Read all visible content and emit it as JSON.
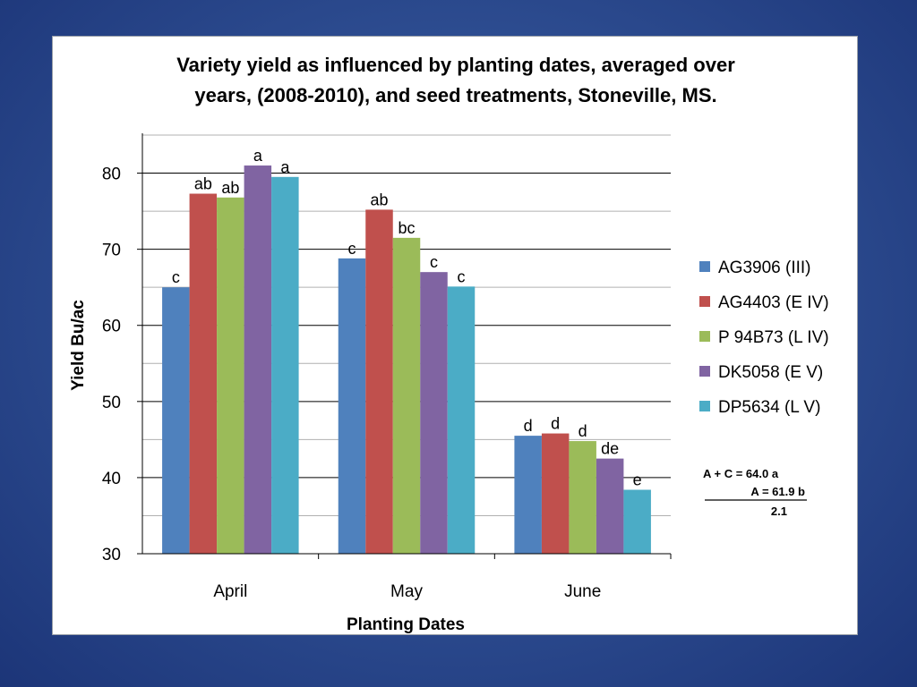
{
  "chart_data": {
    "type": "bar",
    "title_lines": [
      "Variety yield as influenced by planting dates, averaged over",
      "years, (2008-2010), and seed treatments, Stoneville, MS."
    ],
    "xlabel": "Planting Dates",
    "ylabel": "Yield Bu/ac",
    "ylim": [
      30,
      85
    ],
    "yticks": [
      30,
      40,
      50,
      60,
      70,
      80
    ],
    "grid": true,
    "legend_position": "right",
    "categories": [
      "April",
      "May",
      "June"
    ],
    "series": [
      {
        "name": "AG3906 (III)",
        "color": "#4f81bd",
        "values": [
          65.0,
          68.8,
          45.5
        ],
        "letters": [
          "c",
          "c",
          "d"
        ]
      },
      {
        "name": "AG4403 (E IV)",
        "color": "#c0504d",
        "values": [
          77.3,
          75.2,
          45.8
        ],
        "letters": [
          "ab",
          "ab",
          "d"
        ]
      },
      {
        "name": "P 94B73 (L IV)",
        "color": "#9bbb59",
        "values": [
          76.8,
          71.5,
          44.8
        ],
        "letters": [
          "ab",
          "bc",
          "d"
        ]
      },
      {
        "name": "DK5058 (E V)",
        "color": "#8064a2",
        "values": [
          81.0,
          67.0,
          42.5
        ],
        "letters": [
          "a",
          "c",
          "de"
        ]
      },
      {
        "name": "DP5634 (L V)",
        "color": "#4bacc6",
        "values": [
          79.5,
          65.1,
          38.4
        ],
        "letters": [
          "a",
          "c",
          "e"
        ]
      }
    ],
    "annotation": {
      "line1": "A + C = 64.0 a",
      "line2": "A = 61.9 b",
      "line3": "2.1"
    }
  }
}
